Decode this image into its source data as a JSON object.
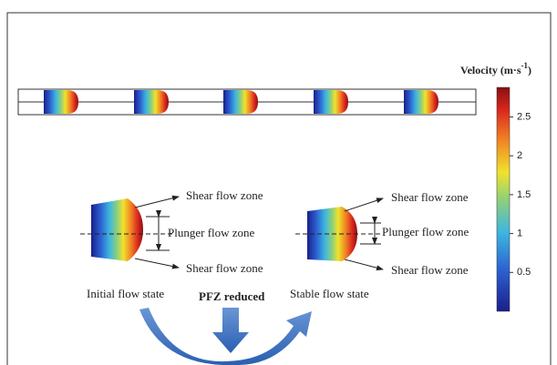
{
  "legend": {
    "title": "Velocity (m·s",
    "title_sup": "-1",
    "title_end": ")",
    "lim": [
      0,
      2.88
    ],
    "ticks": [
      0.5,
      1,
      1.5,
      2,
      2.5
    ]
  },
  "initial": {
    "caption": "Initial flow state",
    "labels": [
      "Shear flow zone",
      "Plunger flow zone",
      "Shear flow zone"
    ]
  },
  "stable": {
    "caption": "Stable flow state",
    "labels": [
      "Shear flow zone",
      "Plunger flow zone",
      "Shear flow zone"
    ]
  },
  "transition": "PFZ reduced"
}
